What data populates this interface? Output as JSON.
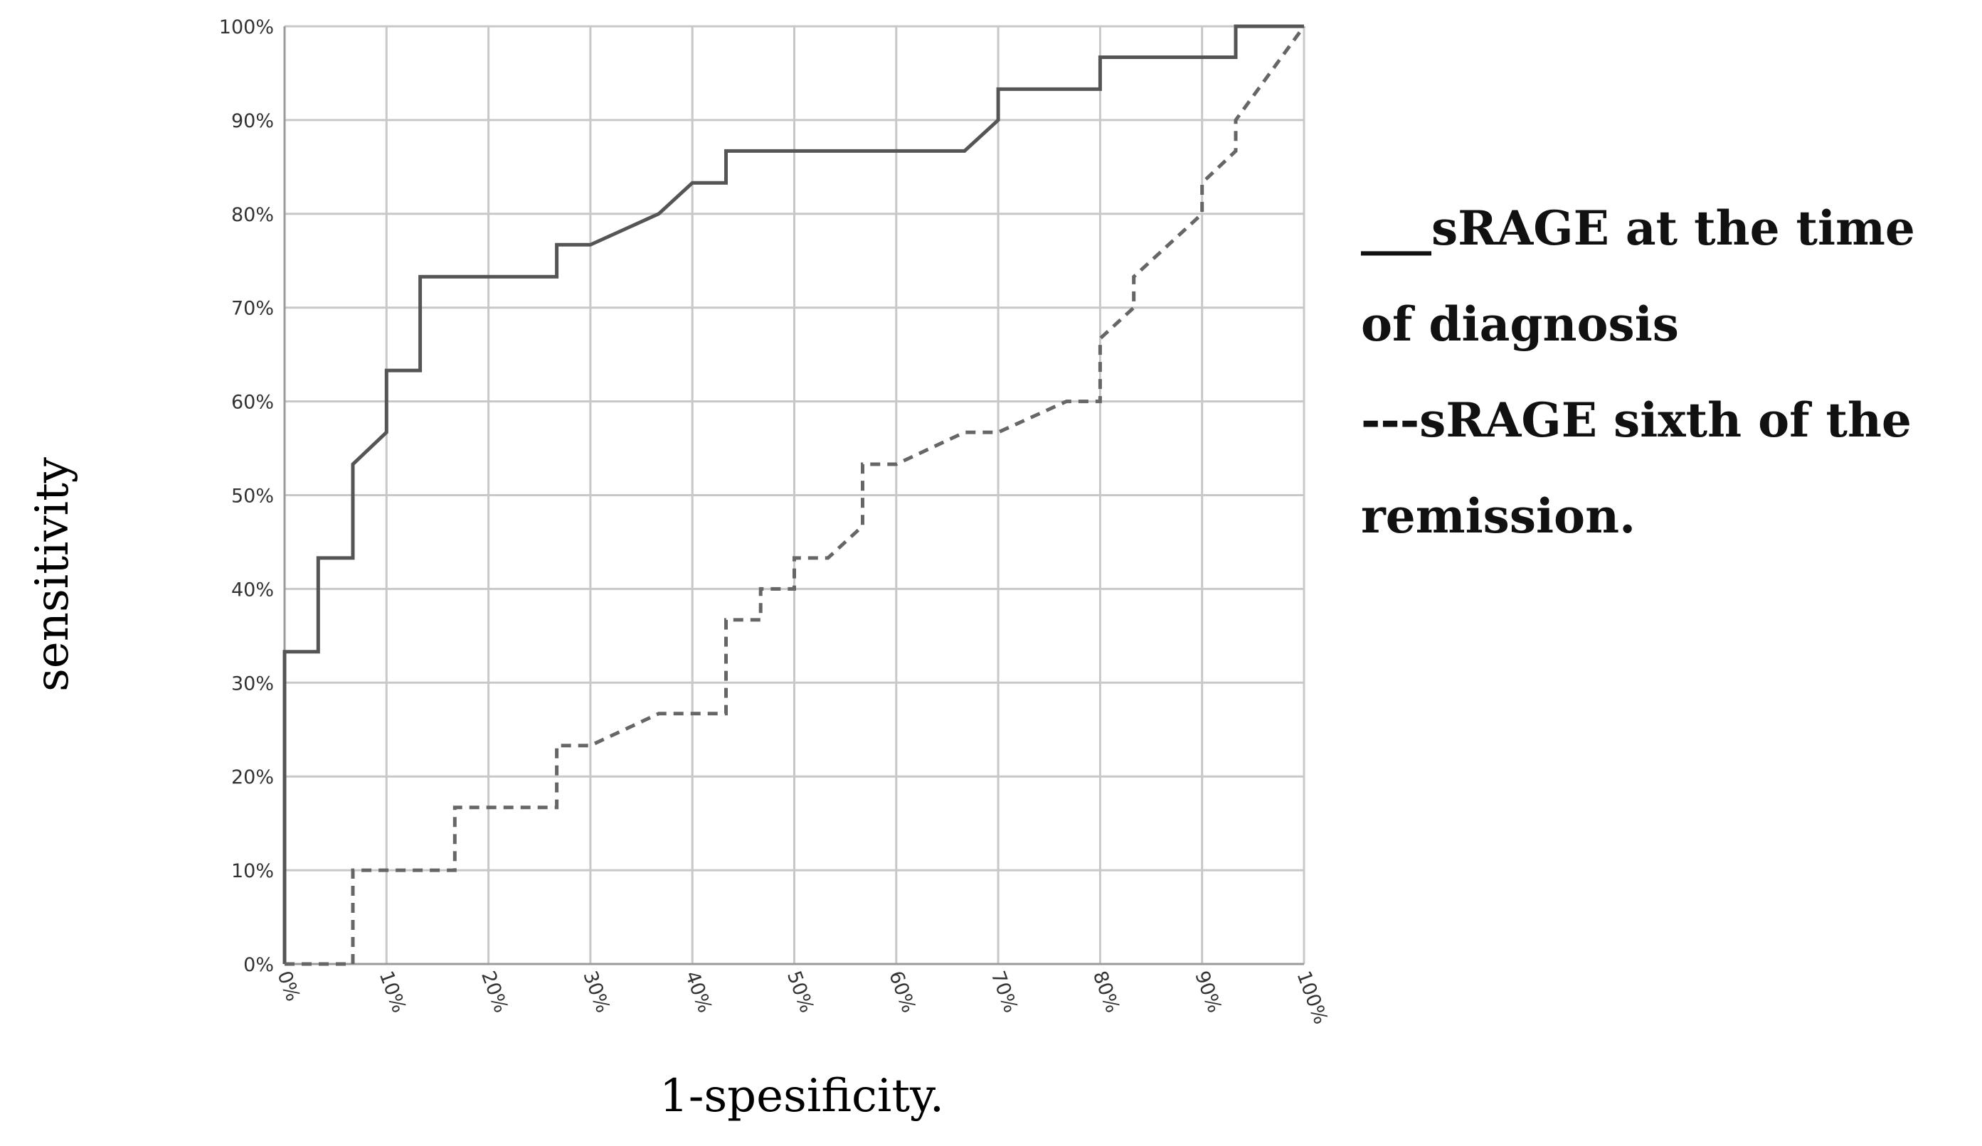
{
  "chart_data": {
    "type": "line",
    "xlabel": "1-spesificity.",
    "ylabel": "sensitivity",
    "xlim": [
      0,
      100
    ],
    "ylim": [
      0,
      100
    ],
    "grid": true,
    "x_ticks": [
      "0%",
      "10%",
      "20%",
      "30%",
      "40%",
      "50%",
      "60%",
      "70%",
      "80%",
      "90%",
      "100%"
    ],
    "y_ticks": [
      "0%",
      "10%",
      "20%",
      "30%",
      "40%",
      "50%",
      "60%",
      "70%",
      "80%",
      "90%",
      "100%"
    ],
    "legend_placement": "right",
    "legend_lines": [
      "___sRAGE at the time",
      "of diagnosis",
      "---sRAGE sixth of the",
      "remission."
    ],
    "series": [
      {
        "style": "solid",
        "color": "#555555",
        "x": [
          0,
          0,
          3.3,
          3.3,
          6.7,
          6.7,
          10,
          10,
          13.3,
          13.3,
          26.7,
          26.7,
          30,
          36.7,
          40,
          43.3,
          43.3,
          66.7,
          70,
          70,
          80,
          80,
          93.3,
          93.3,
          100
        ],
        "y": [
          0,
          33.3,
          33.3,
          43.3,
          43.3,
          53.3,
          56.7,
          63.3,
          63.3,
          73.3,
          73.3,
          76.7,
          76.7,
          80,
          83.3,
          83.3,
          86.7,
          86.7,
          90,
          93.3,
          93.3,
          96.7,
          96.7,
          100,
          100
        ]
      },
      {
        "style": "dashed",
        "color": "#666666",
        "x": [
          0,
          6.7,
          6.7,
          16.7,
          16.7,
          26.7,
          26.7,
          30,
          36.7,
          43.3,
          43.3,
          46.7,
          46.7,
          50,
          50,
          53.3,
          56.7,
          56.7,
          60,
          66.7,
          70,
          76.7,
          80,
          80,
          83.3,
          83.3,
          90,
          90,
          93.3,
          93.3,
          100
        ],
        "y": [
          0,
          0,
          10,
          10,
          16.7,
          16.7,
          23.3,
          23.3,
          26.7,
          26.7,
          36.7,
          36.7,
          40,
          40,
          43.3,
          43.3,
          46.7,
          53.3,
          53.3,
          56.7,
          56.7,
          60,
          60,
          66.7,
          70,
          73.3,
          80,
          83.3,
          86.7,
          90,
          100
        ]
      }
    ]
  }
}
